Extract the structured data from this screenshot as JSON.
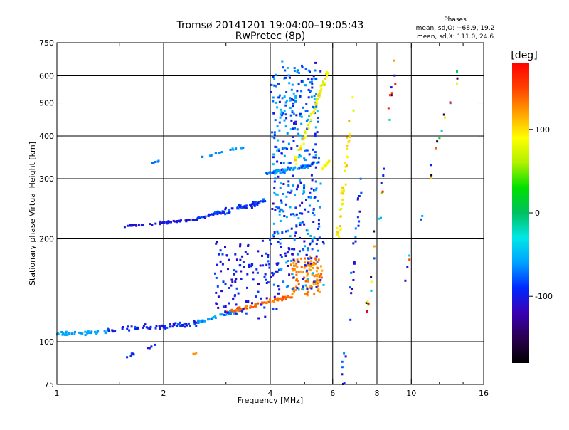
{
  "chart_data": {
    "type": "scatter",
    "title": "Tromsø 20141201 19:04:00–19:05:43",
    "subtitle": "RwPretec (8p)",
    "xlabel": "Frequency [MHz]",
    "ylabel": "Stationary phase Virtual Height [km]",
    "x_scale": "log",
    "y_scale": "log",
    "xlim": [
      1,
      16
    ],
    "ylim": [
      75,
      750
    ],
    "grid": true,
    "x_ticks": [
      1,
      2,
      4,
      6,
      8,
      10,
      16
    ],
    "x_minor_ticks": [
      1.5,
      3,
      5,
      7,
      9,
      12,
      14
    ],
    "y_ticks": [
      75,
      100,
      200,
      300,
      400,
      500,
      600,
      750
    ],
    "x_gridlines": [
      2,
      4,
      6,
      8,
      10
    ],
    "y_gridlines": [
      100,
      200,
      300,
      400,
      500,
      600
    ],
    "stats": {
      "heading": "Phases",
      "line1": "mean, sd,O: −68.9, 19.2",
      "line2": "mean, sd,X: 111.0, 24.6"
    },
    "colorbar": {
      "label": "[deg]",
      "range": [
        -180,
        180
      ],
      "ticks": [
        100,
        0,
        -100
      ],
      "stops": [
        "#000000",
        "#2a0050",
        "#3a00b4",
        "#0028ff",
        "#00a0ff",
        "#00e8e8",
        "#00c060",
        "#00e000",
        "#b0f000",
        "#ffff00",
        "#ffa000",
        "#ff4000",
        "#ff0000"
      ]
    },
    "series": [
      {
        "x0": 1.0,
        "x1": 1.38,
        "y0": 105,
        "y1": 107,
        "jitter": 0.02,
        "n": 45,
        "phase": [
          -65,
          -50
        ]
      },
      {
        "x0": 1.38,
        "x1": 2.5,
        "y0": 108,
        "y1": 113,
        "jitter": 0.025,
        "n": 70,
        "phase": [
          -115,
          -75
        ]
      },
      {
        "x0": 2.5,
        "x1": 3.3,
        "y0": 114,
        "y1": 124,
        "jitter": 0.02,
        "n": 45,
        "phase": [
          -80,
          -45
        ]
      },
      {
        "x0": 3.0,
        "x1": 4.6,
        "y0": 122,
        "y1": 136,
        "jitter": 0.02,
        "n": 70,
        "phase": [
          125,
          150
        ]
      },
      {
        "x0": 4.6,
        "x1": 5.6,
        "y0": 138,
        "y1": 175,
        "jitter": 0.025,
        "n": 110,
        "phase": [
          115,
          145
        ]
      },
      {
        "x0": 1.55,
        "x1": 2.5,
        "y0": 218,
        "y1": 228,
        "jitter": 0.012,
        "n": 60,
        "phase": [
          -115,
          -90
        ]
      },
      {
        "x0": 2.5,
        "x1": 3.85,
        "y0": 230,
        "y1": 258,
        "jitter": 0.025,
        "n": 85,
        "phase": [
          -110,
          -70
        ]
      },
      {
        "x0": 2.5,
        "x1": 3.5,
        "y0": 345,
        "y1": 375,
        "jitter": 0.012,
        "n": 16,
        "phase": [
          -75,
          -50
        ]
      },
      {
        "x0": 1.85,
        "x1": 1.95,
        "y0": 333,
        "y1": 338,
        "jitter": 0.01,
        "n": 6,
        "phase": [
          -75,
          -60
        ]
      },
      {
        "x0": 3.9,
        "x1": 5.3,
        "y0": 310,
        "y1": 330,
        "jitter": 0.02,
        "n": 70,
        "phase": [
          -100,
          -45
        ]
      },
      {
        "x0": 4.05,
        "x1": 5.5,
        "y0": 330,
        "y1": 650,
        "jitter": 0.05,
        "n": 200,
        "phase": [
          -110,
          -40
        ]
      },
      {
        "x0": 4.05,
        "x1": 5.6,
        "y0": 140,
        "y1": 300,
        "jitter": 0.05,
        "n": 200,
        "phase": [
          -120,
          -45
        ]
      },
      {
        "x0": 2.8,
        "x1": 4.2,
        "y0": 120,
        "y1": 195,
        "jitter": 0.05,
        "n": 120,
        "phase": [
          -120,
          -80
        ]
      },
      {
        "x0": 4.7,
        "x1": 5.8,
        "y0": 330,
        "y1": 620,
        "jitter": 0.03,
        "n": 60,
        "phase": [
          60,
          110
        ]
      },
      {
        "x0": 5.6,
        "x1": 5.9,
        "y0": 320,
        "y1": 340,
        "jitter": 0.01,
        "n": 20,
        "phase": [
          80,
          100
        ]
      },
      {
        "x0": 6.2,
        "x1": 6.9,
        "y0": 200,
        "y1": 520,
        "jitter": 0.05,
        "n": 40,
        "phase": [
          70,
          120
        ]
      },
      {
        "x0": 6.4,
        "x1": 7.2,
        "y0": 75,
        "y1": 300,
        "jitter": 0.05,
        "n": 30,
        "phase": [
          -120,
          -60
        ]
      },
      {
        "x0": 7.5,
        "x1": 9.0,
        "y0": 120,
        "y1": 640,
        "jitter": 0.05,
        "n": 28,
        "phase": [
          -180,
          180
        ]
      },
      {
        "x0": 9.5,
        "x1": 13.5,
        "y0": 150,
        "y1": 620,
        "jitter": 0.05,
        "n": 20,
        "phase": [
          -180,
          180
        ]
      },
      {
        "x0": 1.55,
        "x1": 1.9,
        "y0": 90,
        "y1": 98,
        "jitter": 0.015,
        "n": 10,
        "phase": [
          -110,
          -80
        ]
      },
      {
        "x0": 2.4,
        "x1": 2.5,
        "y0": 91,
        "y1": 93,
        "jitter": 0.01,
        "n": 3,
        "phase": [
          120,
          140
        ]
      }
    ]
  }
}
